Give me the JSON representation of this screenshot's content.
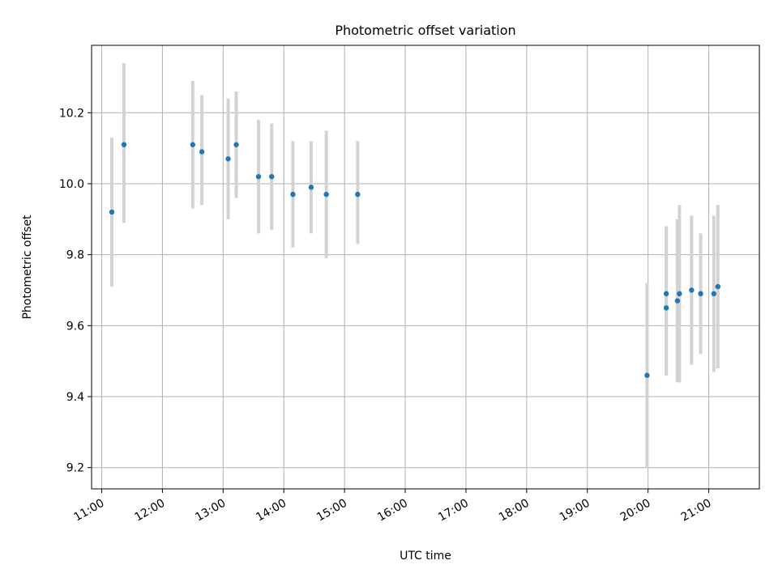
{
  "chart_data": {
    "type": "scatter",
    "title": "Photometric offset variation",
    "xlabel": "UTC time",
    "ylabel": "Photometric offset",
    "x_ticks": [
      "11:00",
      "12:00",
      "13:00",
      "14:00",
      "15:00",
      "16:00",
      "17:00",
      "18:00",
      "19:00",
      "20:00",
      "21:00"
    ],
    "y_ticks": [
      "9.2",
      "9.4",
      "9.6",
      "9.8",
      "10.0",
      "10.2"
    ],
    "xlim": [
      "10:50",
      "21:50"
    ],
    "ylim": [
      9.14,
      10.39
    ],
    "grid": true,
    "colors": {
      "points": "#1f77b4",
      "error_bars": "#d3d3d3",
      "grid": "#b0b0b0"
    },
    "points": [
      {
        "time": "11:10",
        "y": 9.92,
        "err_low": 0.21,
        "err_high": 0.21
      },
      {
        "time": "11:22",
        "y": 10.11,
        "err_low": 0.22,
        "err_high": 0.23
      },
      {
        "time": "12:30",
        "y": 10.11,
        "err_low": 0.18,
        "err_high": 0.18
      },
      {
        "time": "12:39",
        "y": 10.09,
        "err_low": 0.15,
        "err_high": 0.16
      },
      {
        "time": "13:05",
        "y": 10.07,
        "err_low": 0.17,
        "err_high": 0.17
      },
      {
        "time": "13:13",
        "y": 10.11,
        "err_low": 0.15,
        "err_high": 0.15
      },
      {
        "time": "13:35",
        "y": 10.02,
        "err_low": 0.16,
        "err_high": 0.16
      },
      {
        "time": "13:48",
        "y": 10.02,
        "err_low": 0.15,
        "err_high": 0.15
      },
      {
        "time": "14:09",
        "y": 9.97,
        "err_low": 0.15,
        "err_high": 0.15
      },
      {
        "time": "14:27",
        "y": 9.99,
        "err_low": 0.13,
        "err_high": 0.13
      },
      {
        "time": "14:42",
        "y": 9.97,
        "err_low": 0.18,
        "err_high": 0.18
      },
      {
        "time": "15:13",
        "y": 9.97,
        "err_low": 0.14,
        "err_high": 0.15
      },
      {
        "time": "19:59",
        "y": 9.46,
        "err_low": 0.26,
        "err_high": 0.26
      },
      {
        "time": "20:18",
        "y": 9.69,
        "err_low": 0.23,
        "err_high": 0.19
      },
      {
        "time": "20:18",
        "y": 9.65,
        "err_low": 0.19,
        "err_high": 0.23
      },
      {
        "time": "20:29",
        "y": 9.67,
        "err_low": 0.23,
        "err_high": 0.23
      },
      {
        "time": "20:31",
        "y": 9.69,
        "err_low": 0.25,
        "err_high": 0.25
      },
      {
        "time": "20:43",
        "y": 9.7,
        "err_low": 0.21,
        "err_high": 0.21
      },
      {
        "time": "20:52",
        "y": 9.69,
        "err_low": 0.17,
        "err_high": 0.17
      },
      {
        "time": "21:05",
        "y": 9.69,
        "err_low": 0.22,
        "err_high": 0.22
      },
      {
        "time": "21:09",
        "y": 9.71,
        "err_low": 0.23,
        "err_high": 0.23
      }
    ]
  }
}
